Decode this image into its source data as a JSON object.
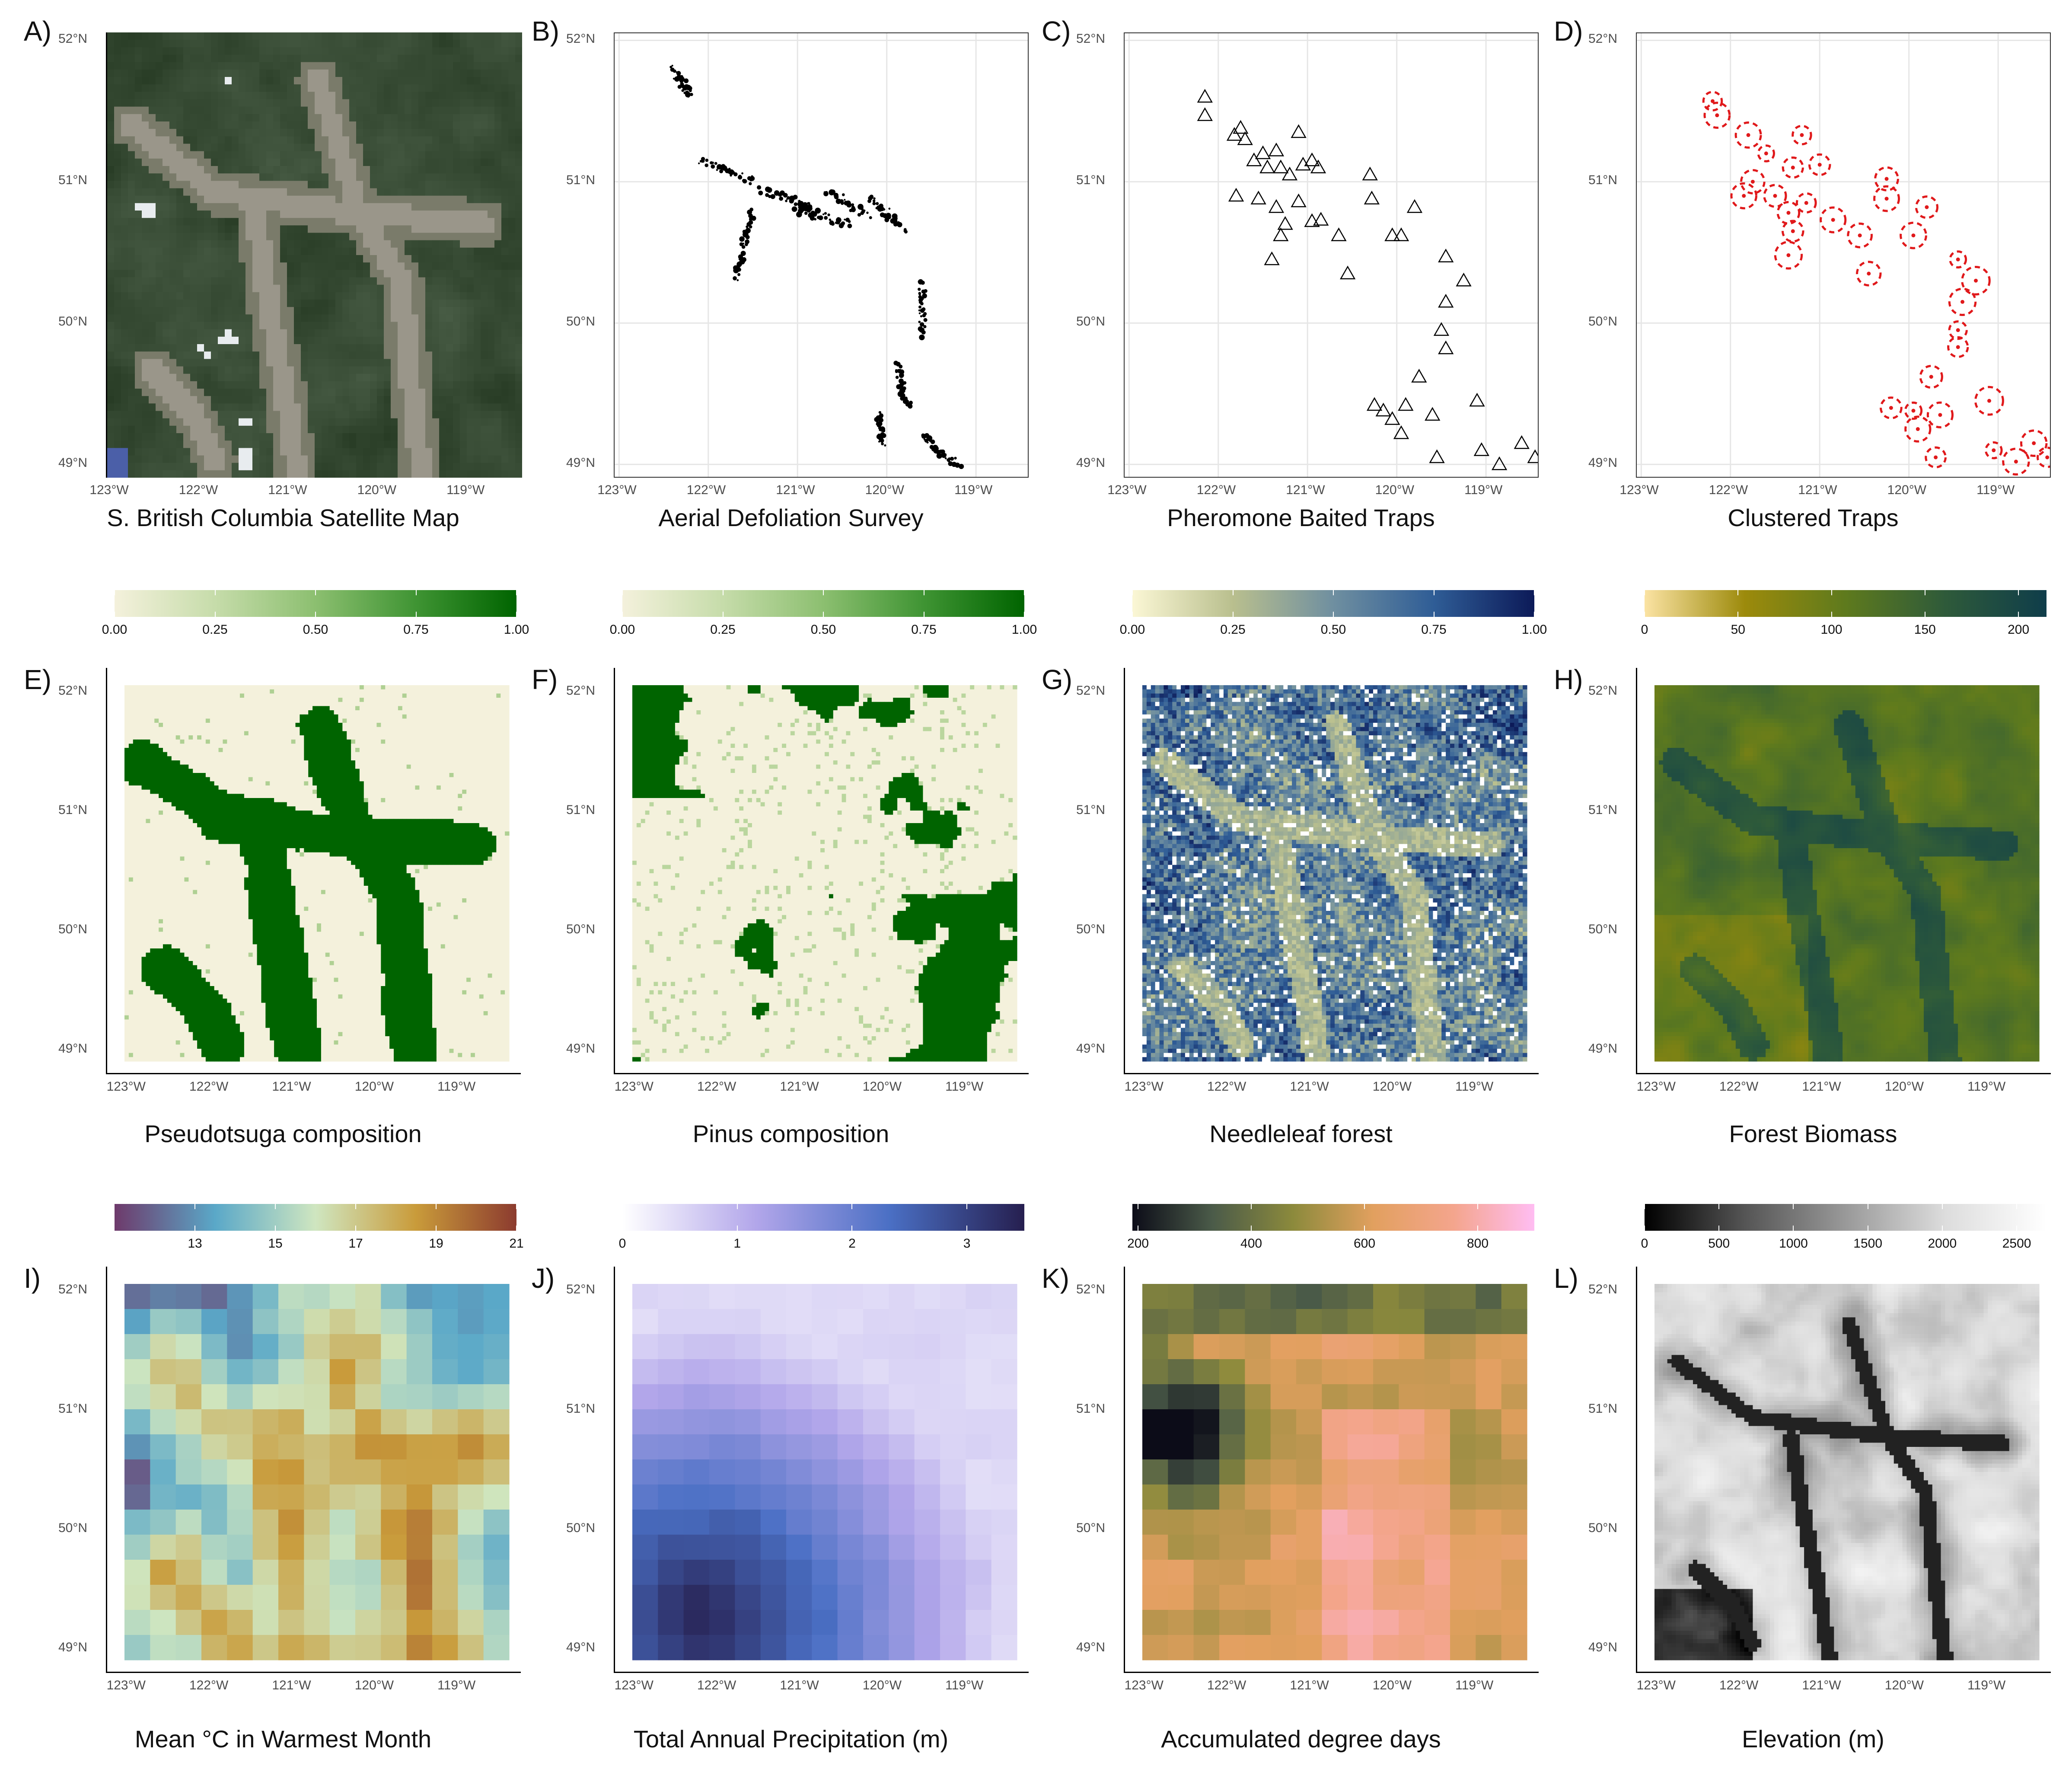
{
  "axes": {
    "lon_ticks": [
      "123°W",
      "122°W",
      "121°W",
      "120°W",
      "119°W"
    ],
    "lat_ticks": [
      "52°N",
      "51°N",
      "50°N",
      "49°N"
    ],
    "lon_values": [
      -123,
      -122,
      -121,
      -120,
      -119
    ],
    "lat_values": [
      52,
      51,
      50,
      49
    ],
    "lon_range": [
      -123.05,
      -118.4
    ],
    "lat_range": [
      48.9,
      52.05
    ]
  },
  "panels": [
    {
      "id": "A",
      "letter": "A)",
      "caption": "S. British Columbia Satellite Map",
      "kind": "satellite"
    },
    {
      "id": "B",
      "letter": "B)",
      "caption": "Aerial Defoliation Survey",
      "kind": "defoliation"
    },
    {
      "id": "C",
      "letter": "C)",
      "caption": "Pheromone Baited Traps",
      "kind": "traps"
    },
    {
      "id": "D",
      "letter": "D)",
      "caption": "Clustered Traps",
      "kind": "clusters"
    },
    {
      "id": "E",
      "letter": "E)",
      "caption": "Pseudotsuga composition",
      "kind": "raster",
      "legend": {
        "labels": [
          "0.00",
          "0.25",
          "0.50",
          "0.75",
          "1.00"
        ],
        "values": [
          0,
          0.25,
          0.5,
          0.75,
          1.0
        ],
        "range": [
          0,
          1.0
        ],
        "colors": [
          "#f4f1dc",
          "#c6dcaa",
          "#8cbf70",
          "#3f9433",
          "#006400"
        ]
      }
    },
    {
      "id": "F",
      "letter": "F)",
      "caption": "Pinus composition",
      "kind": "raster",
      "legend": {
        "labels": [
          "0.00",
          "0.25",
          "0.50",
          "0.75",
          "1.00"
        ],
        "values": [
          0,
          0.25,
          0.5,
          0.75,
          1.0
        ],
        "range": [
          0,
          1.0
        ],
        "colors": [
          "#f4f1dc",
          "#c6dcaa",
          "#8cbf70",
          "#3f9433",
          "#006400"
        ]
      }
    },
    {
      "id": "G",
      "letter": "G)",
      "caption": "Needleleaf forest",
      "kind": "raster",
      "legend": {
        "labels": [
          "0.00",
          "0.25",
          "0.50",
          "0.75",
          "1.00"
        ],
        "values": [
          0,
          0.25,
          0.5,
          0.75,
          1.0
        ],
        "range": [
          0,
          1.0
        ],
        "colors": [
          "#fbf7d5",
          "#b9bf8e",
          "#6f8fa0",
          "#2f5d96",
          "#0c1a58"
        ]
      }
    },
    {
      "id": "H",
      "letter": "H)",
      "caption": "Forest Biomass",
      "kind": "raster",
      "legend": {
        "labels": [
          "0",
          "50",
          "100",
          "150",
          "200"
        ],
        "values": [
          0,
          50,
          100,
          150,
          200
        ],
        "range": [
          0,
          215
        ],
        "colors": [
          "#fbe3a3",
          "#9c8a0b",
          "#5e7a1d",
          "#2e5a3a",
          "#0f3d4a"
        ]
      }
    },
    {
      "id": "I",
      "letter": "I)",
      "caption": "Mean °C in Warmest Month",
      "kind": "raster",
      "legend": {
        "labels": [
          "13",
          "15",
          "17",
          "19",
          "21"
        ],
        "values": [
          13,
          15,
          17,
          19,
          21
        ],
        "range": [
          11,
          21
        ],
        "colors": [
          "#6e3a6b",
          "#5aa8c8",
          "#cfe6c0",
          "#c99b3a",
          "#8c3b2f"
        ]
      }
    },
    {
      "id": "J",
      "letter": "J)",
      "caption": "Total Annual Precipitation (m)",
      "kind": "raster",
      "legend": {
        "labels": [
          "0",
          "1",
          "2",
          "3"
        ],
        "values": [
          0,
          1,
          2,
          3
        ],
        "range": [
          0,
          3.5
        ],
        "colors": [
          "#ffffff",
          "#b2a6ea",
          "#4a6fc4",
          "#261f4f"
        ]
      }
    },
    {
      "id": "K",
      "letter": "K)",
      "caption": "Accumulated degree days",
      "kind": "raster",
      "legend": {
        "labels": [
          "200",
          "400",
          "600",
          "800"
        ],
        "values": [
          200,
          400,
          600,
          800
        ],
        "range": [
          190,
          900
        ],
        "colors": [
          "#0c0c18",
          "#4b5b49",
          "#8c8a3c",
          "#e2a05f",
          "#f4a58d",
          "#ffbdf2"
        ]
      }
    },
    {
      "id": "L",
      "letter": "L)",
      "caption": "Elevation (m)",
      "kind": "raster",
      "legend": {
        "labels": [
          "0",
          "500",
          "1000",
          "1500",
          "2000",
          "2500"
        ],
        "values": [
          0,
          500,
          1000,
          1500,
          2000,
          2500
        ],
        "range": [
          0,
          2700
        ],
        "colors": [
          "#000000",
          "#555555",
          "#999999",
          "#dddddd",
          "#ffffff"
        ]
      }
    }
  ],
  "trap_locations": [
    [
      -122.15,
      51.6
    ],
    [
      -122.15,
      51.47
    ],
    [
      -121.82,
      51.33
    ],
    [
      -121.75,
      51.38
    ],
    [
      -121.7,
      51.3
    ],
    [
      -121.6,
      51.15
    ],
    [
      -121.5,
      51.2
    ],
    [
      -121.45,
      51.1
    ],
    [
      -121.35,
      51.22
    ],
    [
      -121.3,
      51.1
    ],
    [
      -121.2,
      51.05
    ],
    [
      -121.1,
      51.35
    ],
    [
      -121.05,
      51.12
    ],
    [
      -120.95,
      51.15
    ],
    [
      -120.88,
      51.1
    ],
    [
      -121.8,
      50.9
    ],
    [
      -121.55,
      50.88
    ],
    [
      -121.35,
      50.82
    ],
    [
      -121.1,
      50.86
    ],
    [
      -121.25,
      50.7
    ],
    [
      -121.3,
      50.62
    ],
    [
      -120.95,
      50.72
    ],
    [
      -120.85,
      50.73
    ],
    [
      -121.4,
      50.45
    ],
    [
      -120.65,
      50.62
    ],
    [
      -120.55,
      50.35
    ],
    [
      -120.3,
      51.05
    ],
    [
      -120.28,
      50.88
    ],
    [
      -120.05,
      50.62
    ],
    [
      -119.95,
      50.62
    ],
    [
      -119.8,
      50.82
    ],
    [
      -119.45,
      50.47
    ],
    [
      -119.25,
      50.3
    ],
    [
      -119.45,
      50.15
    ],
    [
      -119.5,
      49.95
    ],
    [
      -119.45,
      49.82
    ],
    [
      -119.75,
      49.62
    ],
    [
      -120.25,
      49.42
    ],
    [
      -120.15,
      49.38
    ],
    [
      -120.05,
      49.32
    ],
    [
      -119.95,
      49.22
    ],
    [
      -119.9,
      49.42
    ],
    [
      -119.6,
      49.35
    ],
    [
      -119.55,
      49.05
    ],
    [
      -119.1,
      49.45
    ],
    [
      -119.05,
      49.1
    ],
    [
      -118.85,
      49.0
    ],
    [
      -118.6,
      49.15
    ],
    [
      -118.45,
      49.05
    ]
  ],
  "cluster_locations": [
    [
      -122.2,
      51.57
    ],
    [
      -122.15,
      51.47
    ],
    [
      -121.8,
      51.33
    ],
    [
      -121.6,
      51.2
    ],
    [
      -121.2,
      51.33
    ],
    [
      -121.3,
      51.1
    ],
    [
      -121.0,
      51.12
    ],
    [
      -121.75,
      51.0
    ],
    [
      -121.85,
      50.9
    ],
    [
      -121.5,
      50.9
    ],
    [
      -121.35,
      50.78
    ],
    [
      -121.15,
      50.85
    ],
    [
      -121.3,
      50.65
    ],
    [
      -120.85,
      50.73
    ],
    [
      -121.35,
      50.48
    ],
    [
      -120.55,
      50.62
    ],
    [
      -120.25,
      51.02
    ],
    [
      -120.25,
      50.88
    ],
    [
      -119.8,
      50.82
    ],
    [
      -119.95,
      50.62
    ],
    [
      -120.45,
      50.35
    ],
    [
      -119.45,
      50.45
    ],
    [
      -119.25,
      50.3
    ],
    [
      -119.4,
      50.15
    ],
    [
      -119.45,
      49.95
    ],
    [
      -119.45,
      49.83
    ],
    [
      -119.75,
      49.62
    ],
    [
      -120.2,
      49.4
    ],
    [
      -119.95,
      49.38
    ],
    [
      -119.9,
      49.25
    ],
    [
      -119.65,
      49.35
    ],
    [
      -119.7,
      49.05
    ],
    [
      -119.1,
      49.45
    ],
    [
      -119.05,
      49.1
    ],
    [
      -118.8,
      49.02
    ],
    [
      -118.6,
      49.15
    ],
    [
      -118.45,
      49.05
    ]
  ]
}
